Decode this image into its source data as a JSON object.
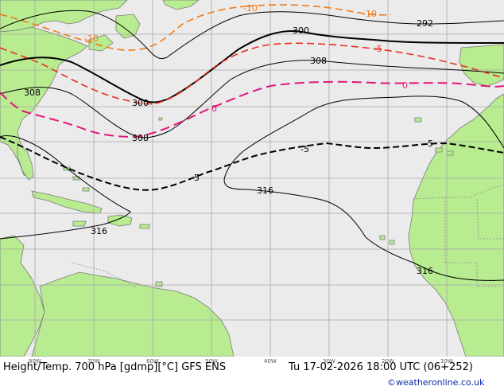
{
  "map": {
    "product": "Height/Temp. 700 hPa [gdmp][°C] GFS ENS",
    "valid_time": "Tu 17-02-2026 18:00 UTC (06+252)",
    "credit": "©weatheronline.co.uk",
    "longitude_ticks": [
      "80W",
      "70W",
      "60W",
      "50W",
      "40W",
      "30W",
      "20W",
      "10W"
    ],
    "height_contour_labels": [
      "292",
      "300",
      "300",
      "308",
      "308",
      "308",
      "316",
      "316",
      "316"
    ],
    "temperature_contour_labels": [
      "-10",
      "-10",
      "-10",
      "-5",
      "0",
      "0",
      "-5",
      "-5",
      "-5"
    ],
    "colors": {
      "ocean": "#ebebeb",
      "land": "#b9ec91",
      "grid": "#a8a8a8",
      "height_contour": "#000000",
      "temp_minus10": "#ef7a1a",
      "temp_minus5": "#e8311e",
      "temp_zero": "#e3157a",
      "temp_plus5": "#000000"
    }
  }
}
